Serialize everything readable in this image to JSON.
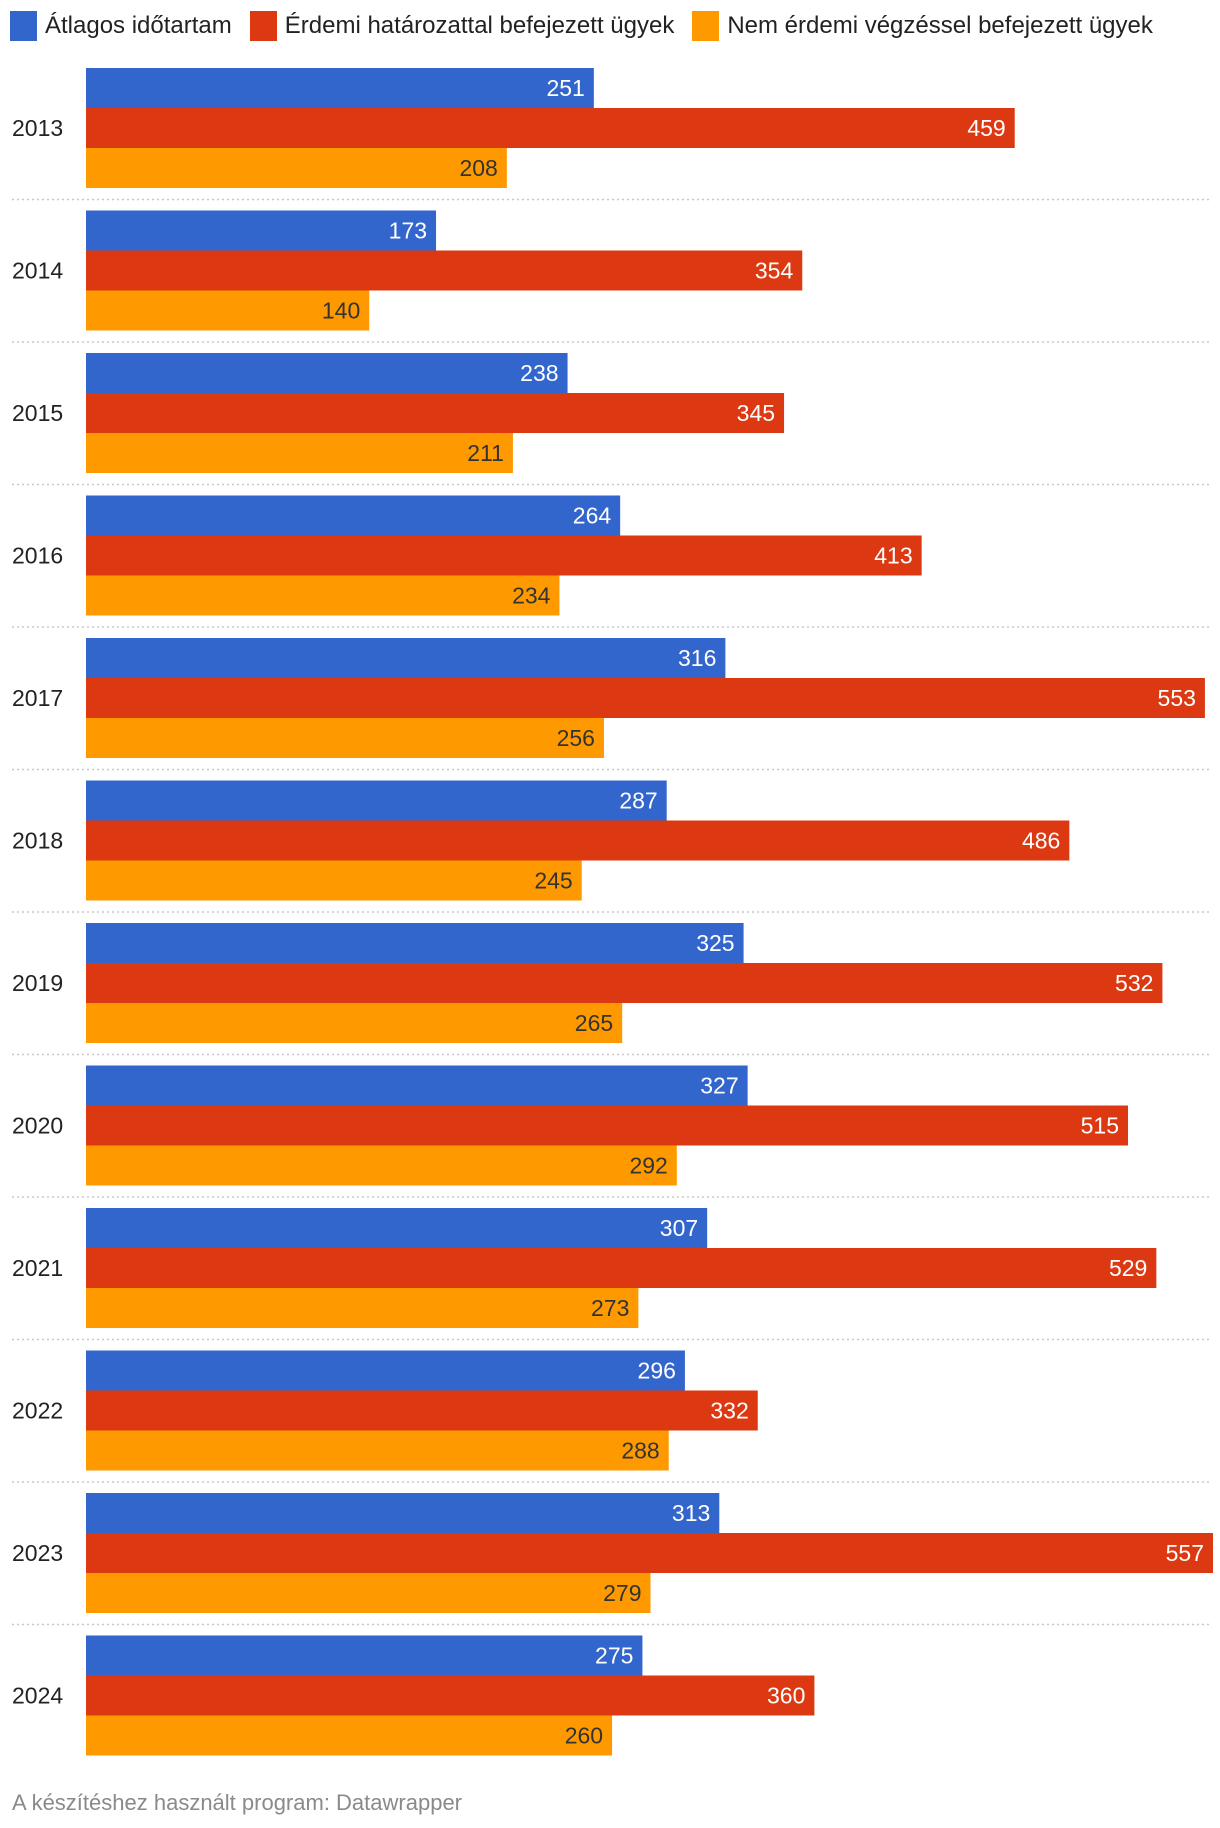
{
  "chart_data": {
    "type": "bar",
    "orientation": "horizontal",
    "title": "",
    "xlabel": "",
    "ylabel": "",
    "xlim": [
      0,
      557
    ],
    "grid": false,
    "legend_position": "top-left",
    "categories": [
      "2013",
      "2014",
      "2015",
      "2016",
      "2017",
      "2018",
      "2019",
      "2020",
      "2021",
      "2022",
      "2023",
      "2024"
    ],
    "series": [
      {
        "name": "Átlagos időtartam",
        "color": "#3366cc",
        "label_color": "#ffffff",
        "values": [
          251,
          173,
          238,
          264,
          316,
          287,
          325,
          327,
          307,
          296,
          313,
          275
        ]
      },
      {
        "name": "Érdemi határozattal befejezett ügyek",
        "color": "#dc3912",
        "label_color": "#ffffff",
        "values": [
          459,
          354,
          345,
          413,
          553,
          486,
          532,
          515,
          529,
          332,
          557,
          360
        ]
      },
      {
        "name": "Nem érdemi végzéssel befejezett ügyek",
        "color": "#ff9900",
        "label_color": "#333333",
        "values": [
          208,
          140,
          211,
          234,
          256,
          245,
          265,
          292,
          273,
          288,
          279,
          260
        ]
      }
    ]
  },
  "footer": {
    "credit": "A készítéshez használt program: Datawrapper"
  }
}
